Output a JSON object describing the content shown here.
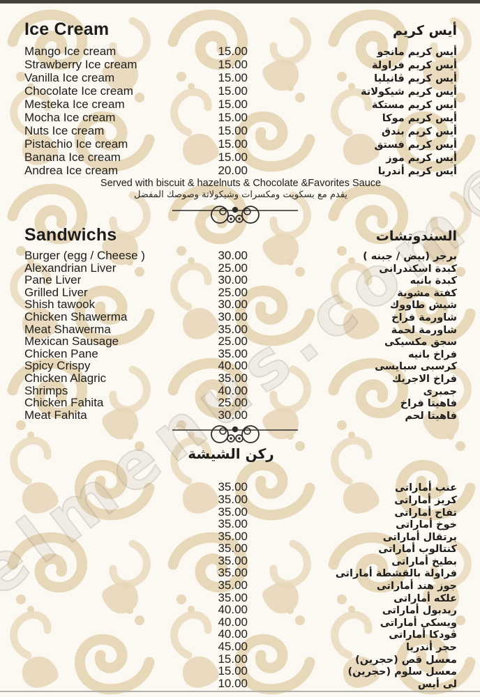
{
  "page": {
    "watermark": "elmenus.com®",
    "background_color": "#fcf9f3",
    "pattern_color": "#e8d8ba",
    "text_color": "#1e1d1b",
    "top_bar_color": "#45413d"
  },
  "sections": [
    {
      "id": "ice-cream",
      "title_en": "Ice Cream",
      "title_ar": "أيس كريم",
      "items": [
        {
          "en": "Mango Ice cream",
          "price": "15.00",
          "ar": "أيس كريم مانجو"
        },
        {
          "en": "Strawberry Ice cream",
          "price": "15.00",
          "ar": "أيس كريم فراولة"
        },
        {
          "en": "Vanilla Ice cream",
          "price": "15.00",
          "ar": "أيس كريم ڤانيليا"
        },
        {
          "en": "Chocolate Ice cream",
          "price": "15.00",
          "ar": "أيس كريم شيكولاتة"
        },
        {
          "en": "Mesteka Ice cream",
          "price": "15.00",
          "ar": "أيس كريم مستكة"
        },
        {
          "en": "Mocha Ice cream",
          "price": "15.00",
          "ar": "أيس كريم موكا"
        },
        {
          "en": "Nuts Ice cream",
          "price": "15.00",
          "ar": "أيس كريم بندق"
        },
        {
          "en": "Pistachio Ice cream",
          "price": "15.00",
          "ar": "أيس كريم فستق"
        },
        {
          "en": "Banana Ice cream",
          "price": "15.00",
          "ar": "أيس كريم موز"
        },
        {
          "en": "Andrea Ice cream",
          "price": "20.00",
          "ar": "أيس كريم أندريا"
        }
      ],
      "note_en": "Served with biscuit & hazelnuts & Chocolate &Favorites Sauce",
      "note_ar": "يقدم مع بسكويت ومكسرات وشيكولاتة وصوصك المفضل"
    },
    {
      "id": "sandwichs",
      "title_en": "Sandwichs",
      "title_ar": "السندوتشات",
      "items": [
        {
          "en": "Burger (egg / Cheese )",
          "price": "30.00",
          "ar": "برجر (بيض / جبنه )"
        },
        {
          "en": "Alexandrian Liver",
          "price": "25.00",
          "ar": "كبدة اسكندرانى"
        },
        {
          "en": "Pane Liver",
          "price": "30.00",
          "ar": "كبدة بانيه"
        },
        {
          "en": "Grilled Liver",
          "price": "25.00",
          "ar": "كفتة مشوية"
        },
        {
          "en": "Shish tawook",
          "price": "30.00",
          "ar": "شيش طاووك"
        },
        {
          "en": "Chicken Shawerma",
          "price": "30.00",
          "ar": "شاورمة فراخ"
        },
        {
          "en": "Meat Shawerma",
          "price": "35.00",
          "ar": "شاورمة لحمة"
        },
        {
          "en": "Mexican Sausage",
          "price": "25.00",
          "ar": "سجق مكسيكى"
        },
        {
          "en": "Chicken Pane",
          "price": "35.00",
          "ar": "فراخ بانيه"
        },
        {
          "en": "Spicy Crispy",
          "price": "40.00",
          "ar": "كرسبى سبايسى"
        },
        {
          "en": "Chicken Alagric",
          "price": "35.00",
          "ar": "فراخ الاجريك"
        },
        {
          "en": "Shrimps",
          "price": "40.00",
          "ar": "جمبرى"
        },
        {
          "en": "Chicken Fahita",
          "price": "25.00",
          "ar": "فاهيتا فراخ"
        },
        {
          "en": "Meat Fahita",
          "price": "30.00",
          "ar": "فاهيتا لحم"
        }
      ]
    },
    {
      "id": "shisha-corner",
      "title_ar": "ركن الشيشة",
      "items": [
        {
          "price": "35.00",
          "ar": "عنب أماراتى"
        },
        {
          "price": "35.00",
          "ar": "كريز أماراتى"
        },
        {
          "price": "35.00",
          "ar": "تفاح أماراتى"
        },
        {
          "price": "35.00",
          "ar": "خوخ أماراتى"
        },
        {
          "price": "35.00",
          "ar": "برتقال أماراتى"
        },
        {
          "price": "35.00",
          "ar": "كنتالوب أماراتى"
        },
        {
          "price": "35.00",
          "ar": "بطيخ أماراتى"
        },
        {
          "price": "35.00",
          "ar": "فراولة بالقشطة أماراتى"
        },
        {
          "price": "35.00",
          "ar": "جوز هند أماراتى"
        },
        {
          "price": "35.00",
          "ar": "علكه أماراتى"
        },
        {
          "price": "40.00",
          "ar": "ريدبول أماراتى"
        },
        {
          "price": "40.00",
          "ar": "ويسكى أماراتى"
        },
        {
          "price": "40.00",
          "ar": "ڤودكا أماراتى"
        },
        {
          "price": "45.00",
          "ar": "حجر أندريا"
        },
        {
          "price": "15.00",
          "ar": "معسل قص (حجرين)"
        },
        {
          "price": "15.00",
          "ar": "معسل سلوم (حجرين)"
        },
        {
          "price": "10.00",
          "ar": "لى أيس"
        }
      ]
    }
  ]
}
